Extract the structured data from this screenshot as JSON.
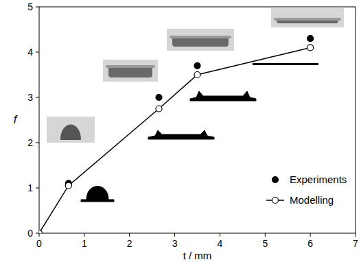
{
  "chart_data": {
    "type": "line",
    "x_label": "t / mm",
    "y_label": "f",
    "x": [
      0,
      0.65,
      2.65,
      3.5,
      6
    ],
    "series": [
      {
        "name": "Experiments",
        "type": "scatter",
        "color": "#000000",
        "marker": "circle",
        "values": [
          0,
          1.1,
          3.0,
          3.7,
          4.3
        ]
      },
      {
        "name": "Modelling",
        "type": "line",
        "color": "#000000",
        "marker": "open_circle",
        "line_style": "solid",
        "values": [
          0,
          1.05,
          2.75,
          3.5,
          4.1
        ]
      }
    ],
    "xlim": [
      0,
      7
    ],
    "xticks": [
      0,
      1,
      2,
      3,
      4,
      5,
      6,
      7
    ],
    "ylim": [
      0,
      5
    ],
    "yticks": [
      0,
      1,
      2,
      3,
      4,
      5
    ],
    "legend": "lower right",
    "grid": false
  }
}
